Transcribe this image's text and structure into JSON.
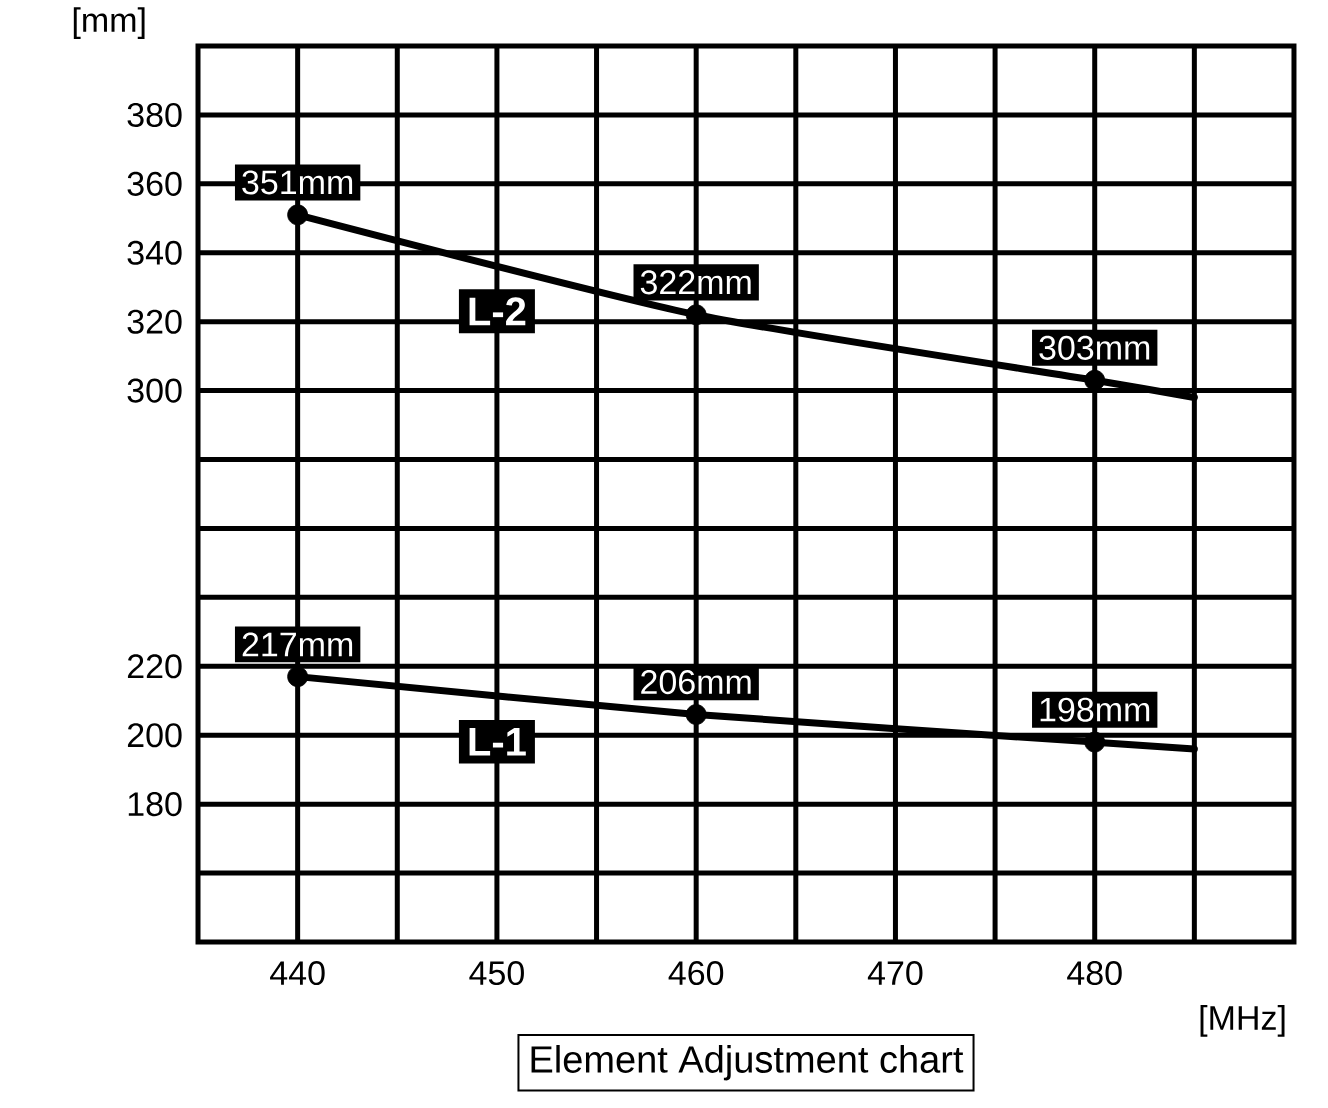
{
  "chart_data": {
    "type": "line",
    "title": "Element Adjustment chart",
    "xlabel": "[MHz]",
    "ylabel": "[mm]",
    "xlim": [
      435,
      490
    ],
    "xticks": [
      440,
      {
        "value": 445,
        "label": null
      },
      450,
      {
        "value": 455,
        "label": null
      },
      460,
      {
        "value": 465,
        "label": null
      },
      470,
      {
        "value": 475,
        "label": null
      },
      480,
      {
        "value": 485,
        "label": null
      }
    ],
    "ylim": [
      140,
      400
    ],
    "yticks": [
      {
        "value": 160,
        "label": null
      },
      180,
      200,
      220,
      {
        "value": 240,
        "label": null
      },
      {
        "value": 260,
        "label": null
      },
      {
        "value": 280,
        "label": null
      },
      300,
      320,
      340,
      360,
      380
    ],
    "grid": true,
    "series": [
      {
        "name": "L-2",
        "color": "#000000",
        "x": [
          440,
          460,
          480,
          485
        ],
        "values": [
          351,
          322,
          303,
          298
        ]
      },
      {
        "type": "scatter",
        "color": "#000000",
        "marker": "circle",
        "x": [
          440,
          460,
          480
        ],
        "values": [
          351,
          322,
          303
        ],
        "value_labels": [
          "351mm",
          "322mm",
          "303mm"
        ]
      },
      {
        "name": "L-1",
        "color": "#000000",
        "x": [
          440,
          460,
          480,
          485
        ],
        "values": [
          217,
          206,
          198,
          196
        ]
      },
      {
        "type": "scatter",
        "color": "#000000",
        "marker": "circle",
        "x": [
          440,
          460,
          480
        ],
        "values": [
          217,
          206,
          198
        ],
        "value_labels": [
          "217mm",
          "206mm",
          "198mm"
        ]
      }
    ]
  }
}
